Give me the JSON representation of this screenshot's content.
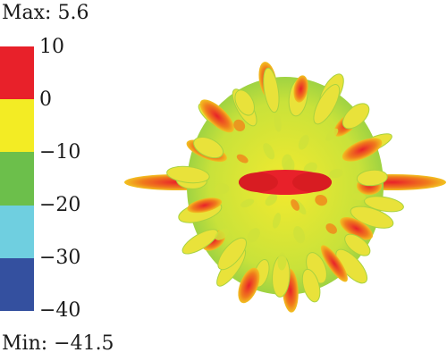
{
  "legend": {
    "max_label": "Max: 5.6",
    "min_label": "Min: −41.5",
    "ticks": [
      "10",
      "0",
      "−10",
      "−20",
      "−30",
      "−40"
    ],
    "band_colors": [
      "#e8212a",
      "#f3ec24",
      "#6cbf4b",
      "#6fcfe0",
      "#34509f"
    ]
  },
  "figure": {
    "description": "3D radiation pattern (red/yellow/green spiky sphere)"
  }
}
